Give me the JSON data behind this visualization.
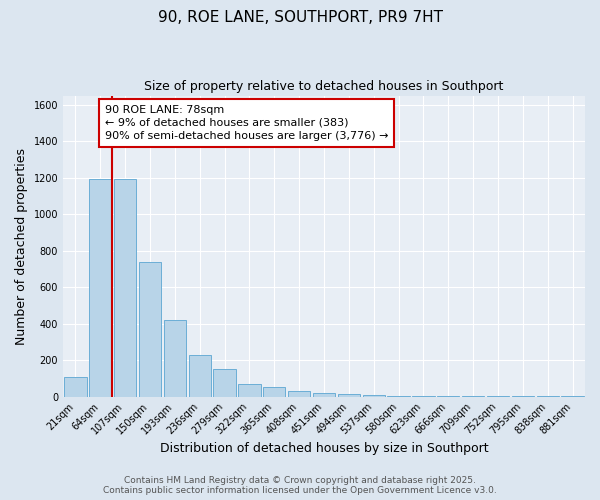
{
  "title": "90, ROE LANE, SOUTHPORT, PR9 7HT",
  "subtitle": "Size of property relative to detached houses in Southport",
  "xlabel": "Distribution of detached houses by size in Southport",
  "ylabel": "Number of detached properties",
  "categories": [
    "21sqm",
    "64sqm",
    "107sqm",
    "150sqm",
    "193sqm",
    "236sqm",
    "279sqm",
    "322sqm",
    "365sqm",
    "408sqm",
    "451sqm",
    "494sqm",
    "537sqm",
    "580sqm",
    "623sqm",
    "666sqm",
    "709sqm",
    "752sqm",
    "795sqm",
    "838sqm",
    "881sqm"
  ],
  "values": [
    105,
    1195,
    1195,
    740,
    420,
    228,
    150,
    70,
    50,
    30,
    22,
    12,
    8,
    5,
    3,
    2,
    1,
    1,
    1,
    1,
    1
  ],
  "bar_color": "#b8d4e8",
  "bar_edge_color": "#6baed6",
  "vline_color": "#cc0000",
  "annotation_text": "90 ROE LANE: 78sqm\n← 9% of detached houses are smaller (383)\n90% of semi-detached houses are larger (3,776) →",
  "annotation_box_color": "#ffffff",
  "annotation_box_edge": "#cc0000",
  "ylim": [
    0,
    1650
  ],
  "yticks": [
    0,
    200,
    400,
    600,
    800,
    1000,
    1200,
    1400,
    1600
  ],
  "bg_color": "#dce6f0",
  "plot_bg_color": "#e8eef5",
  "grid_color": "#ffffff",
  "footer_line1": "Contains HM Land Registry data © Crown copyright and database right 2025.",
  "footer_line2": "Contains public sector information licensed under the Open Government Licence v3.0.",
  "title_fontsize": 11,
  "subtitle_fontsize": 9,
  "axis_label_fontsize": 9,
  "tick_fontsize": 7,
  "annotation_fontsize": 8,
  "footer_fontsize": 6.5
}
